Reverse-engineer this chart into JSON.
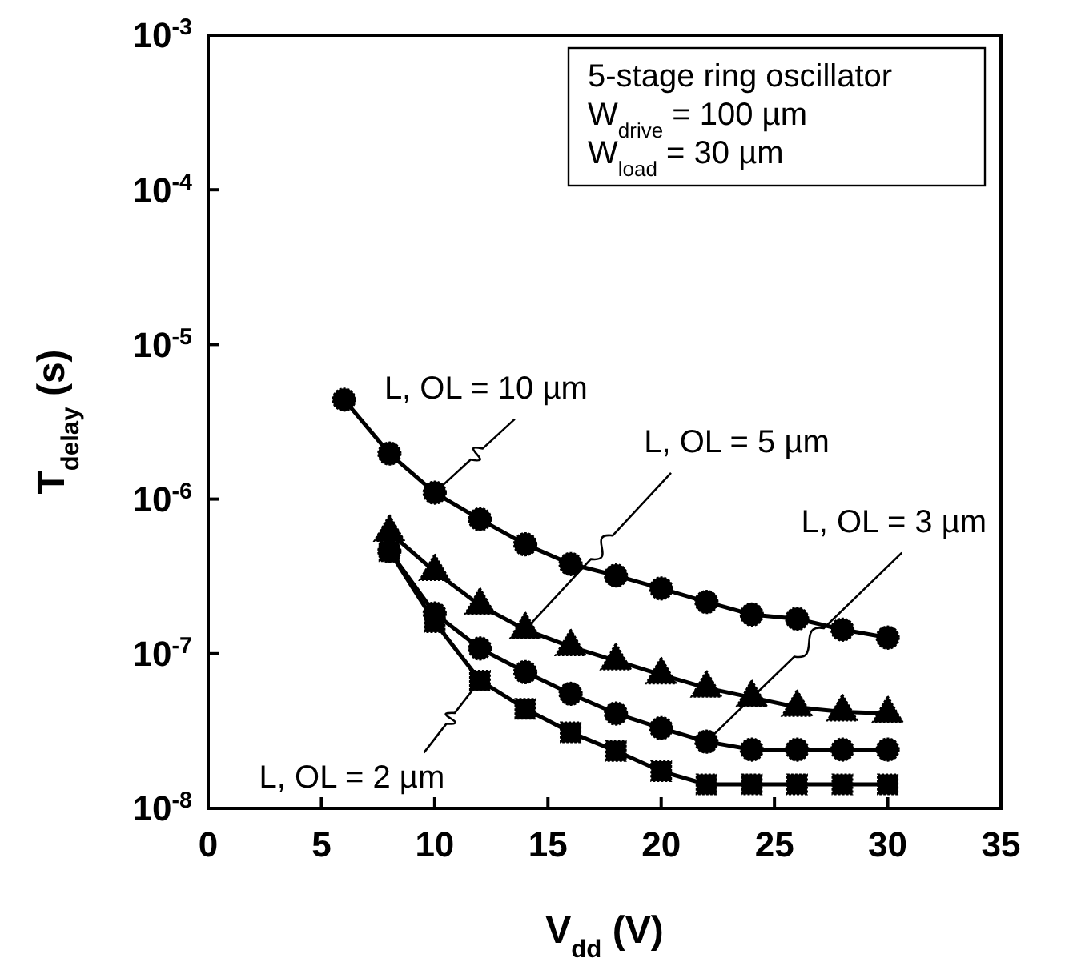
{
  "chart_data": {
    "type": "line",
    "xlabel": "V$_{dd}$ (V)",
    "ylabel": "T$_{delay}$ (s)",
    "log": "y",
    "xlim": [
      0,
      35
    ],
    "xticks": [
      0,
      5,
      10,
      15,
      20,
      25,
      30,
      35
    ],
    "ylim": [
      1e-08,
      0.001
    ],
    "yticks": [
      {
        "value": 1e-08,
        "label": "10$^{-8}$"
      },
      {
        "value": 1e-07,
        "label": "10$^{-7}$"
      },
      {
        "value": 1e-06,
        "label": "10$^{-6}$"
      },
      {
        "value": 1e-05,
        "label": "10$^{-5}$"
      },
      {
        "value": 0.0001,
        "label": "10$^{-4}$"
      },
      {
        "value": 0.001,
        "label": "10$^{-3}$"
      }
    ],
    "grid": false,
    "line_style": "solid",
    "series": [
      {
        "color": "#000000",
        "marker": "circle",
        "x": [
          6,
          8,
          10,
          12,
          14,
          16,
          18,
          20,
          22,
          24,
          26,
          28,
          30
        ],
        "values": [
          4.4e-06,
          1.97e-06,
          1.1e-06,
          7.4e-07,
          5.1e-07,
          3.8e-07,
          3.2e-07,
          2.64e-07,
          2.16e-07,
          1.79e-07,
          1.68e-07,
          1.43e-07,
          1.27e-07
        ]
      },
      {
        "color": "#000000",
        "marker": "triangle",
        "x": [
          8,
          10,
          12,
          14,
          16,
          18,
          20,
          22,
          24,
          26,
          28,
          30
        ],
        "values": [
          6.1e-07,
          3.4e-07,
          2.05e-07,
          1.43e-07,
          1.11e-07,
          9e-08,
          7.3e-08,
          6e-08,
          5.2e-08,
          4.5e-08,
          4.2e-08,
          4.1e-08
        ]
      },
      {
        "color": "#000000",
        "marker": "circle",
        "x": [
          8,
          10,
          12,
          14,
          16,
          18,
          20,
          22,
          24,
          26,
          28,
          30
        ],
        "values": [
          4.6e-07,
          1.82e-07,
          1.08e-07,
          7.6e-08,
          5.5e-08,
          4.1e-08,
          3.3e-08,
          2.7e-08,
          2.4e-08,
          2.4e-08,
          2.4e-08,
          2.4e-08
        ]
      },
      {
        "color": "#000000",
        "marker": "square",
        "x": [
          8,
          10,
          12,
          14,
          16,
          18,
          20,
          22,
          24,
          26,
          28,
          30
        ],
        "values": [
          4.6e-07,
          1.6e-07,
          6.7e-08,
          4.4e-08,
          3.1e-08,
          2.35e-08,
          1.74e-08,
          1.43e-08,
          1.43e-08,
          1.43e-08,
          1.43e-08,
          1.43e-08
        ]
      }
    ],
    "annotations": [
      "5-stage ring oscillator",
      "W$_{drive}$ = 100 µm",
      "W$_{load}$ = 30 µm",
      {
        "text": "L, OL = 10 µm",
        "x": 10,
        "y": 1.1e-06
      },
      {
        "text": "L, OL = 5 µm",
        "x": 14,
        "y": 1.43e-07
      },
      {
        "text": "L, OL = 3 µm",
        "x": 22,
        "y": 2.7e-08
      },
      {
        "text": "L, OL = 2 µm",
        "x": 12,
        "y": 6.7e-08
      }
    ]
  }
}
